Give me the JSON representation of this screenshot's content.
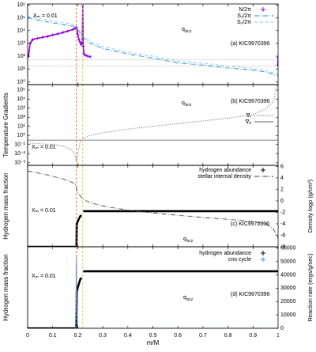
{
  "chart_data": [
    {
      "type": "line",
      "log_y": true,
      "xlim": [
        0,
        1
      ],
      "ylim": [
        0.6,
        1200000
      ],
      "yticks": [
        {
          "value": 1000000,
          "label": "10⁶"
        },
        {
          "value": 100000,
          "label": "10⁵"
        },
        {
          "value": 10000,
          "label": "10⁴"
        },
        {
          "value": 1000,
          "label": "10³"
        },
        {
          "value": 100,
          "label": "10²"
        },
        {
          "value": 10,
          "label": "10¹"
        },
        {
          "value": 1,
          "label": "10⁰"
        }
      ],
      "hlines": [
        55,
        17
      ],
      "vlines": [
        {
          "x": 0.195,
          "color": "#f07020"
        },
        {
          "x": 0.22,
          "color": "#c8c840"
        }
      ],
      "annotations": [
        "Xₘ = 0.01",
        {
          "text": "q",
          "sub": "bcz"
        },
        "(a) KIC9970396"
      ],
      "series": [
        {
          "name": "N/2π",
          "color": "#9400d3",
          "style": "points",
          "marker": "+",
          "x": [
            0.003,
            0.01,
            0.02,
            0.04,
            0.06,
            0.08,
            0.1,
            0.12,
            0.14,
            0.16,
            0.18,
            0.19,
            0.195,
            0.2,
            0.205,
            0.21,
            0.215,
            0.218,
            0.22,
            0.222,
            0.225,
            0.23,
            0.24,
            0.25,
            null,
            0.999,
            1
          ],
          "values": [
            100,
            1000,
            2000,
            2500,
            3000,
            3500,
            4500,
            5500,
            7000,
            9000,
            12000,
            15000,
            18000,
            5000,
            2000,
            1200,
            800,
            1000,
            900000,
            600,
            150,
            120,
            100,
            90,
            null,
            20,
            80
          ]
        },
        {
          "name": "S₁/2π",
          "color": "#1e90d0",
          "style": "dashdot",
          "x": [
            0,
            0.05,
            0.1,
            0.15,
            0.19,
            0.2,
            0.22,
            0.25,
            0.3,
            0.4,
            0.5,
            0.6,
            0.7,
            0.8,
            0.9,
            0.95,
            1
          ],
          "values": [
            100000,
            60000,
            40000,
            28000,
            20000,
            12000,
            3000,
            1000,
            400,
            150,
            70,
            30,
            20,
            12,
            8,
            6,
            3
          ]
        },
        {
          "name": "S₂/2π",
          "color": "#80c8f0",
          "style": "dashed",
          "x": [
            0,
            0.05,
            0.1,
            0.15,
            0.19,
            0.2,
            0.22,
            0.25,
            0.3,
            0.4,
            0.5,
            0.6,
            0.7,
            0.8,
            0.9,
            0.95,
            1
          ],
          "values": [
            140000,
            85000,
            57000,
            40000,
            28000,
            17000,
            4200,
            1400,
            560,
            210,
            100,
            42,
            28,
            17,
            11,
            8,
            4
          ]
        }
      ]
    },
    {
      "type": "line",
      "log_y": true,
      "xlim": [
        0,
        1
      ],
      "ylim": [
        0.0005,
        400000
      ],
      "ylabel": "Temperature Gradients",
      "yticks": [
        {
          "value": 100000,
          "label": "10⁵"
        },
        {
          "value": 10000,
          "label": "10⁴"
        },
        {
          "value": 1000,
          "label": "10³"
        },
        {
          "value": 100,
          "label": "10²"
        },
        {
          "value": 10,
          "label": "10¹"
        },
        {
          "value": 1,
          "label": "10⁰"
        },
        {
          "value": 0.1,
          "label": "10⁻¹"
        },
        {
          "value": 0.01,
          "label": "10⁻²"
        },
        {
          "value": 0.001,
          "label": "10⁻³"
        }
      ],
      "vlines": [
        {
          "x": 0.195,
          "color": "#f07020"
        },
        {
          "x": 0.22,
          "color": "#c8c840"
        }
      ],
      "annotations": [
        "Xₘ = 0.01",
        {
          "text": "q",
          "sub": "bcz"
        },
        "(b) KIC9970396"
      ],
      "series": [
        {
          "name": "∇ᵣ",
          "color": "#555555",
          "style": "dotted",
          "x": [
            0,
            0.05,
            0.1,
            0.15,
            0.18,
            0.19,
            0.195,
            0.2,
            0.21,
            0.22,
            0.25,
            0.3,
            0.4,
            0.5,
            0.6,
            0.7,
            0.8,
            0.9,
            0.95,
            0.98,
            1
          ],
          "values": [
            0.15,
            0.12,
            0.1,
            0.06,
            0.02,
            0.005,
            0.001,
            0.01,
            0.2,
            0.4,
            1,
            2,
            5,
            10,
            20,
            40,
            80,
            200,
            800,
            5000,
            1000000
          ]
        },
        {
          "name": "∇ₐ",
          "color": "#666666",
          "style": "solid",
          "x": [
            0,
            1
          ],
          "values": [
            0.3,
            0.3
          ]
        }
      ]
    },
    {
      "type": "line",
      "log_y": false,
      "xlim": [
        0,
        1
      ],
      "ylim": [
        0,
        1.6
      ],
      "y2lim": [
        -8,
        6.2
      ],
      "ylabel": "Hydrogen mass fraction",
      "y2label": "Density logρ (g/cm³)",
      "y2ticks": [
        6,
        4,
        2,
        0,
        -2,
        -4,
        -6,
        -8
      ],
      "vlines": [
        {
          "x": 0.195,
          "color": "#f07020"
        },
        {
          "x": 0.22,
          "color": "#c8c840"
        }
      ],
      "annotations": [
        "Xₘ = 0.01",
        {
          "text": "q",
          "sub": "bcz"
        },
        "(c) KIC9970396"
      ],
      "series": [
        {
          "name": "hydrogen abundance",
          "color": "#000000",
          "style": "thick",
          "marker": "+",
          "x": [
            0,
            0.195,
            0.196,
            0.2,
            0.205,
            0.21,
            0.215,
            null,
            0.222,
            1
          ],
          "values": [
            0,
            0,
            0.45,
            0.5,
            0.55,
            0.6,
            0.62,
            null,
            0.7,
            0.7
          ]
        },
        {
          "name": "stellar internal density",
          "color": "#555555",
          "style": "dashdot",
          "axis": "y2",
          "x": [
            0,
            0.05,
            0.1,
            0.15,
            0.19,
            0.2,
            0.22,
            0.25,
            0.3,
            0.4,
            0.5,
            0.6,
            0.7,
            0.8,
            0.9,
            0.95,
            0.98,
            1
          ],
          "values": [
            5.2,
            4.8,
            4.3,
            3.7,
            3.0,
            1.5,
            0.3,
            -0.3,
            -0.9,
            -1.6,
            -2.1,
            -2.5,
            -2.9,
            -3.2,
            -3.6,
            -4.0,
            -4.8,
            -6.5
          ]
        }
      ]
    },
    {
      "type": "line",
      "log_y": false,
      "xlim": [
        0,
        1
      ],
      "ylim": [
        0,
        1
      ],
      "y2lim": [
        0,
        61000
      ],
      "xlabel": "m/M",
      "ylabel": "Hydrogen mass fraction",
      "y2label": "Reaction rate (ergs/g/sec)",
      "xticks": [
        0,
        0.1,
        0.2,
        0.3,
        0.4,
        0.5,
        0.6,
        0.7,
        0.8,
        0.9,
        1
      ],
      "y2ticks": [
        0,
        10000,
        20000,
        30000,
        40000,
        50000,
        60000
      ],
      "vlines": [
        {
          "x": 0.195,
          "color": "#f07020"
        },
        {
          "x": 0.22,
          "color": "#c8c840"
        }
      ],
      "annotations": [
        "Xₘ = 0.01",
        {
          "text": "q",
          "sub": "bcz"
        },
        "(d) KIC9970396"
      ],
      "series": [
        {
          "name": "hydrogen abundance",
          "color": "#000000",
          "style": "thick",
          "marker": "+",
          "x": [
            0,
            0.195,
            0.196,
            0.2,
            0.205,
            0.21,
            0.215,
            null,
            0.222,
            1
          ],
          "values": [
            0,
            0,
            0.45,
            0.5,
            0.55,
            0.6,
            0.62,
            null,
            0.7,
            0.7
          ]
        },
        {
          "name": "cno cycle",
          "color": "#3399ff",
          "style": "solid",
          "marker": "+",
          "axis": "y2",
          "x": [
            0,
            0.19,
            0.193,
            0.195,
            0.197,
            0.2,
            1
          ],
          "values": [
            0,
            0,
            20000,
            53000,
            10000,
            0,
            0
          ]
        }
      ]
    }
  ]
}
